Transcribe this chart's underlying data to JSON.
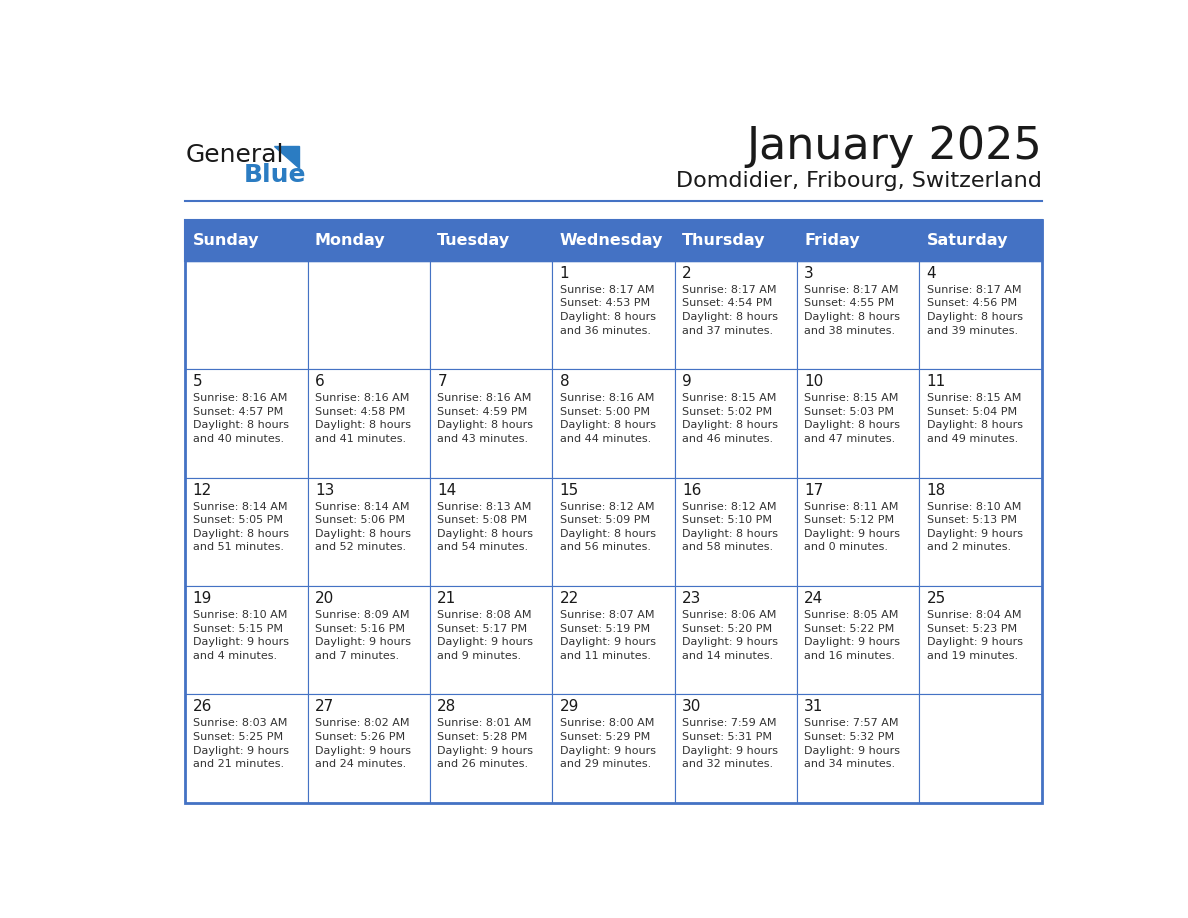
{
  "title": "January 2025",
  "subtitle": "Domdidier, Fribourg, Switzerland",
  "header_bg_color": "#4472C4",
  "header_text_color": "#FFFFFF",
  "border_color": "#4472C4",
  "day_names": [
    "Sunday",
    "Monday",
    "Tuesday",
    "Wednesday",
    "Thursday",
    "Friday",
    "Saturday"
  ],
  "title_color": "#1a1a1a",
  "subtitle_color": "#1a1a1a",
  "cell_text_color": "#333333",
  "day_num_color": "#1a1a1a",
  "logo_general_color": "#1a1a1a",
  "logo_blue_color": "#2b7cc2",
  "weeks": [
    [
      {
        "day": "",
        "text": ""
      },
      {
        "day": "",
        "text": ""
      },
      {
        "day": "",
        "text": ""
      },
      {
        "day": "1",
        "text": "Sunrise: 8:17 AM\nSunset: 4:53 PM\nDaylight: 8 hours\nand 36 minutes."
      },
      {
        "day": "2",
        "text": "Sunrise: 8:17 AM\nSunset: 4:54 PM\nDaylight: 8 hours\nand 37 minutes."
      },
      {
        "day": "3",
        "text": "Sunrise: 8:17 AM\nSunset: 4:55 PM\nDaylight: 8 hours\nand 38 minutes."
      },
      {
        "day": "4",
        "text": "Sunrise: 8:17 AM\nSunset: 4:56 PM\nDaylight: 8 hours\nand 39 minutes."
      }
    ],
    [
      {
        "day": "5",
        "text": "Sunrise: 8:16 AM\nSunset: 4:57 PM\nDaylight: 8 hours\nand 40 minutes."
      },
      {
        "day": "6",
        "text": "Sunrise: 8:16 AM\nSunset: 4:58 PM\nDaylight: 8 hours\nand 41 minutes."
      },
      {
        "day": "7",
        "text": "Sunrise: 8:16 AM\nSunset: 4:59 PM\nDaylight: 8 hours\nand 43 minutes."
      },
      {
        "day": "8",
        "text": "Sunrise: 8:16 AM\nSunset: 5:00 PM\nDaylight: 8 hours\nand 44 minutes."
      },
      {
        "day": "9",
        "text": "Sunrise: 8:15 AM\nSunset: 5:02 PM\nDaylight: 8 hours\nand 46 minutes."
      },
      {
        "day": "10",
        "text": "Sunrise: 8:15 AM\nSunset: 5:03 PM\nDaylight: 8 hours\nand 47 minutes."
      },
      {
        "day": "11",
        "text": "Sunrise: 8:15 AM\nSunset: 5:04 PM\nDaylight: 8 hours\nand 49 minutes."
      }
    ],
    [
      {
        "day": "12",
        "text": "Sunrise: 8:14 AM\nSunset: 5:05 PM\nDaylight: 8 hours\nand 51 minutes."
      },
      {
        "day": "13",
        "text": "Sunrise: 8:14 AM\nSunset: 5:06 PM\nDaylight: 8 hours\nand 52 minutes."
      },
      {
        "day": "14",
        "text": "Sunrise: 8:13 AM\nSunset: 5:08 PM\nDaylight: 8 hours\nand 54 minutes."
      },
      {
        "day": "15",
        "text": "Sunrise: 8:12 AM\nSunset: 5:09 PM\nDaylight: 8 hours\nand 56 minutes."
      },
      {
        "day": "16",
        "text": "Sunrise: 8:12 AM\nSunset: 5:10 PM\nDaylight: 8 hours\nand 58 minutes."
      },
      {
        "day": "17",
        "text": "Sunrise: 8:11 AM\nSunset: 5:12 PM\nDaylight: 9 hours\nand 0 minutes."
      },
      {
        "day": "18",
        "text": "Sunrise: 8:10 AM\nSunset: 5:13 PM\nDaylight: 9 hours\nand 2 minutes."
      }
    ],
    [
      {
        "day": "19",
        "text": "Sunrise: 8:10 AM\nSunset: 5:15 PM\nDaylight: 9 hours\nand 4 minutes."
      },
      {
        "day": "20",
        "text": "Sunrise: 8:09 AM\nSunset: 5:16 PM\nDaylight: 9 hours\nand 7 minutes."
      },
      {
        "day": "21",
        "text": "Sunrise: 8:08 AM\nSunset: 5:17 PM\nDaylight: 9 hours\nand 9 minutes."
      },
      {
        "day": "22",
        "text": "Sunrise: 8:07 AM\nSunset: 5:19 PM\nDaylight: 9 hours\nand 11 minutes."
      },
      {
        "day": "23",
        "text": "Sunrise: 8:06 AM\nSunset: 5:20 PM\nDaylight: 9 hours\nand 14 minutes."
      },
      {
        "day": "24",
        "text": "Sunrise: 8:05 AM\nSunset: 5:22 PM\nDaylight: 9 hours\nand 16 minutes."
      },
      {
        "day": "25",
        "text": "Sunrise: 8:04 AM\nSunset: 5:23 PM\nDaylight: 9 hours\nand 19 minutes."
      }
    ],
    [
      {
        "day": "26",
        "text": "Sunrise: 8:03 AM\nSunset: 5:25 PM\nDaylight: 9 hours\nand 21 minutes."
      },
      {
        "day": "27",
        "text": "Sunrise: 8:02 AM\nSunset: 5:26 PM\nDaylight: 9 hours\nand 24 minutes."
      },
      {
        "day": "28",
        "text": "Sunrise: 8:01 AM\nSunset: 5:28 PM\nDaylight: 9 hours\nand 26 minutes."
      },
      {
        "day": "29",
        "text": "Sunrise: 8:00 AM\nSunset: 5:29 PM\nDaylight: 9 hours\nand 29 minutes."
      },
      {
        "day": "30",
        "text": "Sunrise: 7:59 AM\nSunset: 5:31 PM\nDaylight: 9 hours\nand 32 minutes."
      },
      {
        "day": "31",
        "text": "Sunrise: 7:57 AM\nSunset: 5:32 PM\nDaylight: 9 hours\nand 34 minutes."
      },
      {
        "day": "",
        "text": ""
      }
    ]
  ]
}
